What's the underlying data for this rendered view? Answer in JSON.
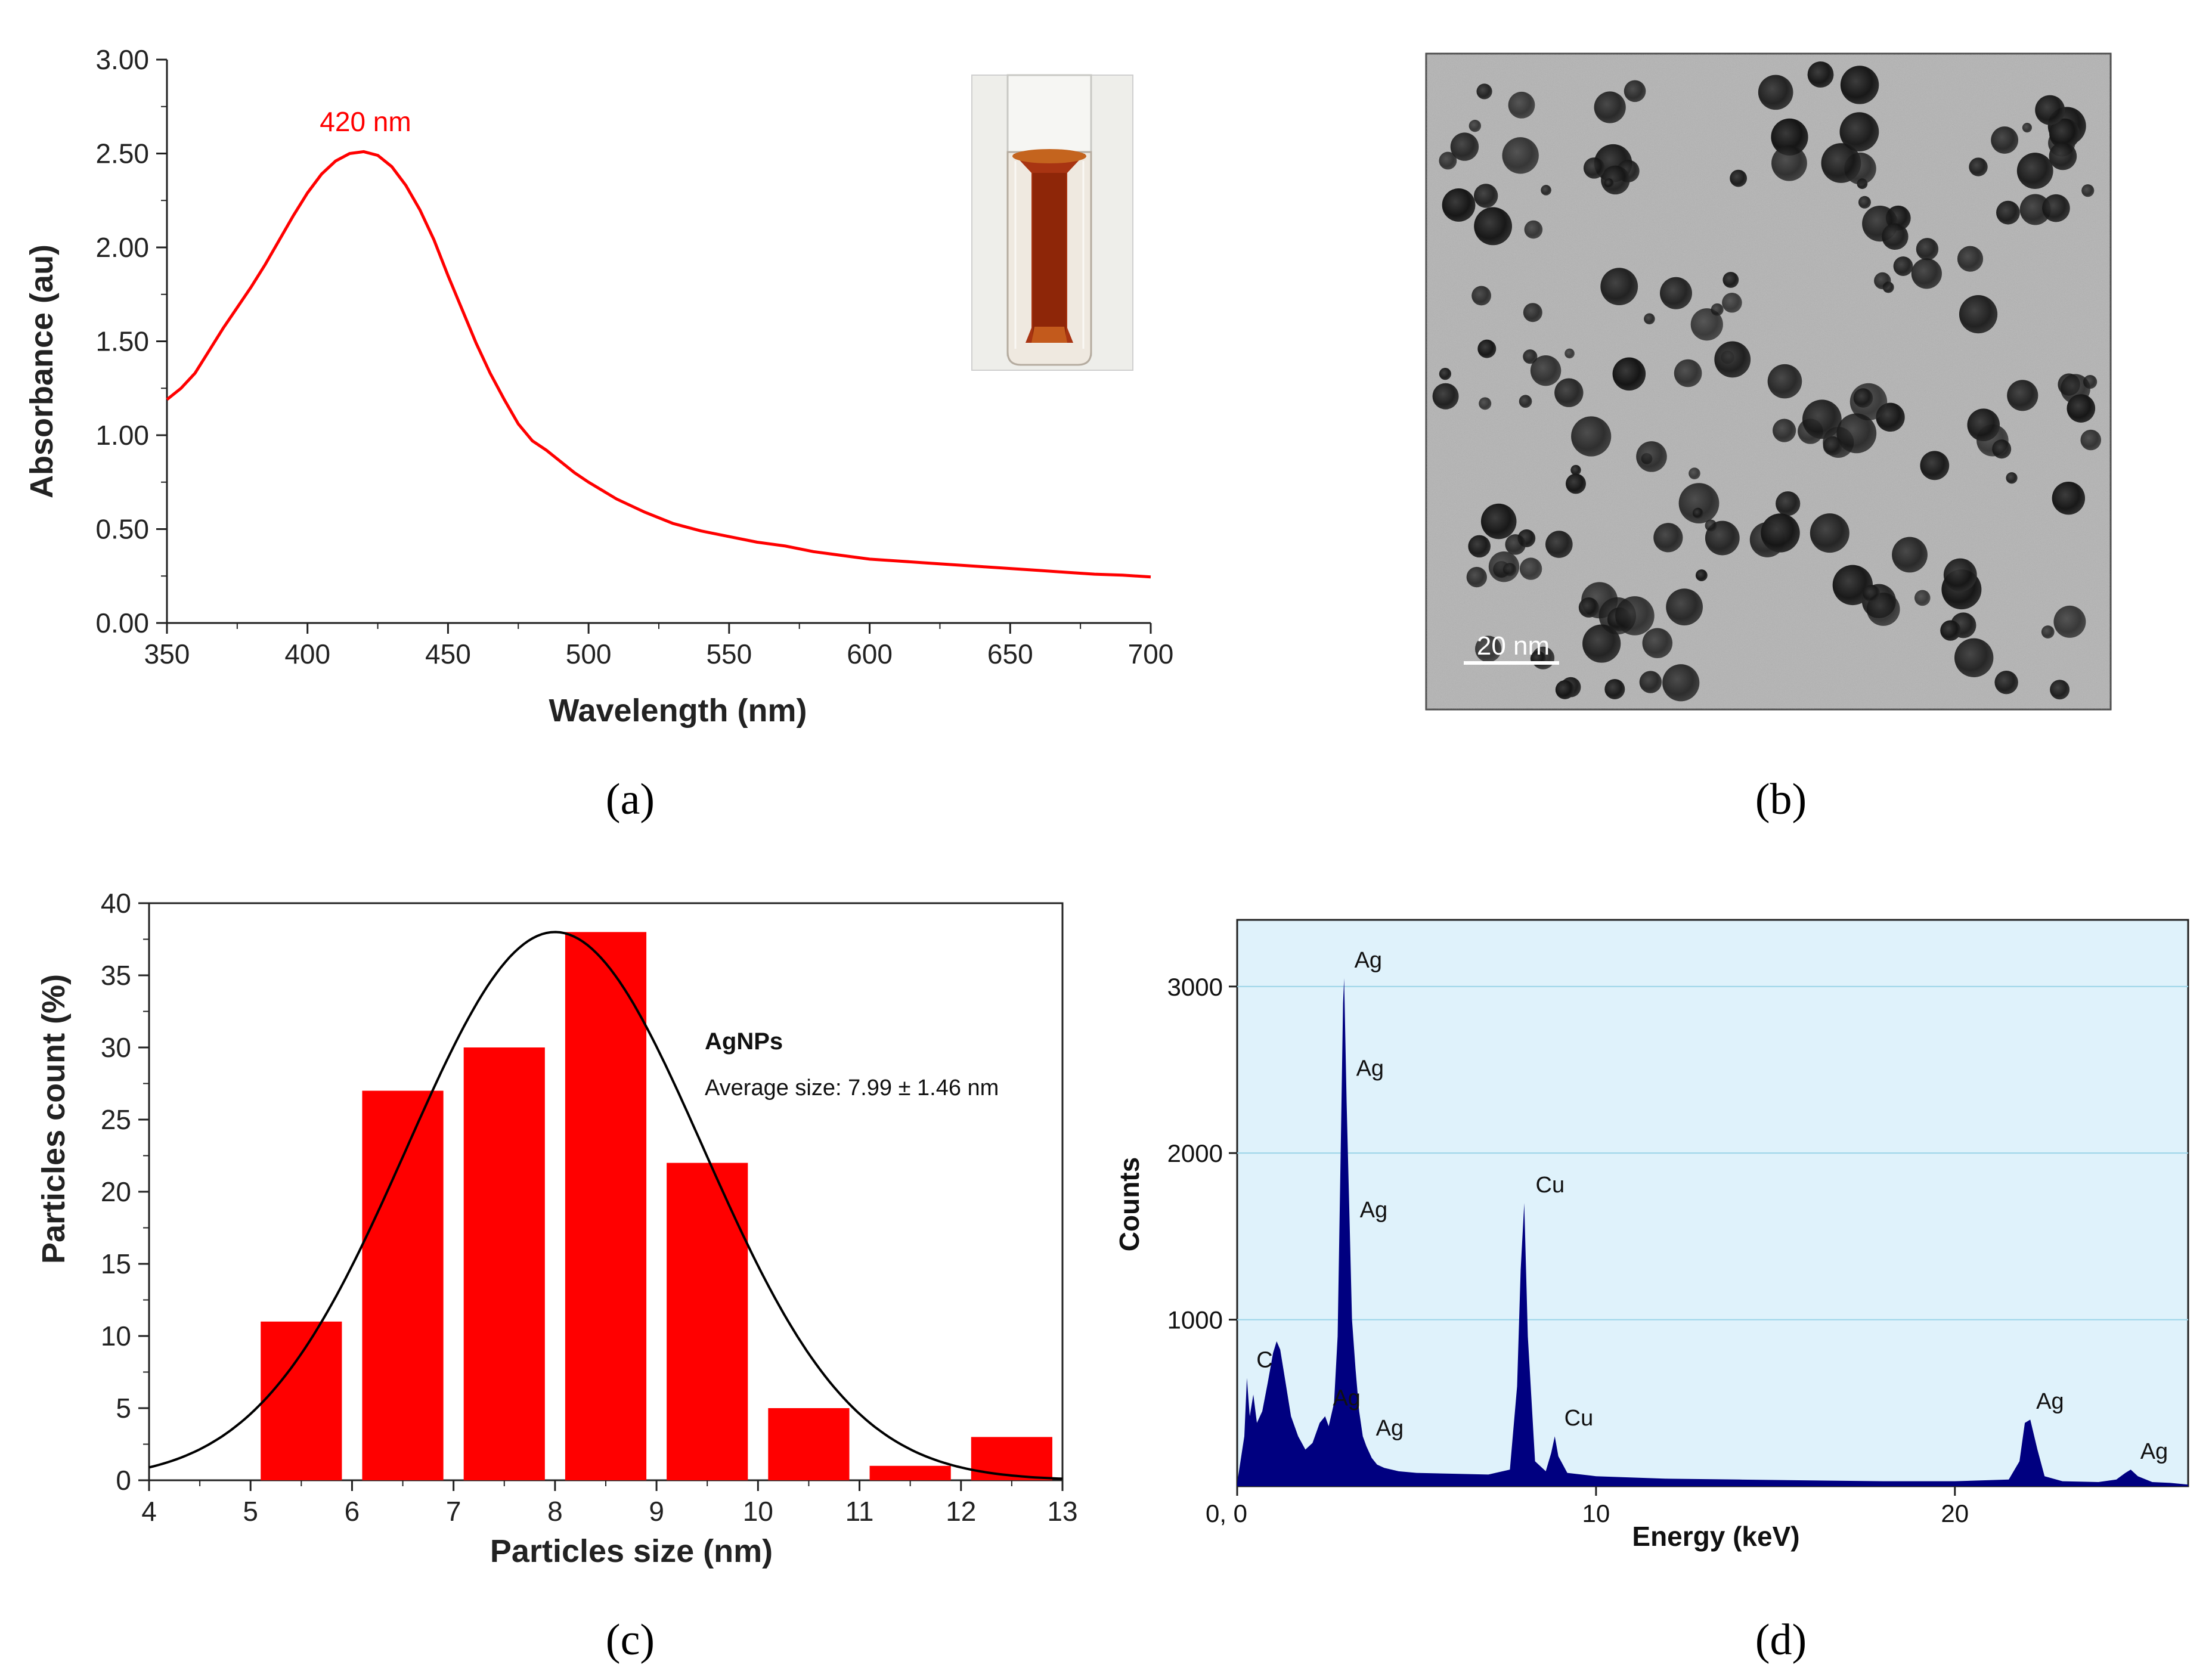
{
  "chart_data": [
    {
      "panel": "a",
      "type": "line",
      "caption": "(a)",
      "xlabel": "Wavelength (nm)",
      "ylabel": "Absorbance (au)",
      "xlim": [
        350,
        700
      ],
      "ylim": [
        0,
        3
      ],
      "xticks": [
        350,
        400,
        450,
        500,
        550,
        600,
        650,
        700
      ],
      "yticks": [
        "0.00",
        "0.50",
        "1.00",
        "1.50",
        "2.00",
        "2.50",
        "3.00"
      ],
      "annotation": "420 nm",
      "inset": "cuvette-photo",
      "series": [
        {
          "name": "absorbance",
          "color": "#ff0000",
          "x": [
            350,
            355,
            360,
            365,
            370,
            375,
            380,
            385,
            390,
            395,
            400,
            405,
            410,
            415,
            420,
            425,
            430,
            435,
            440,
            445,
            450,
            455,
            460,
            465,
            470,
            475,
            480,
            485,
            490,
            495,
            500,
            510,
            520,
            530,
            540,
            550,
            560,
            570,
            580,
            590,
            600,
            610,
            620,
            630,
            640,
            650,
            660,
            670,
            680,
            690,
            700
          ],
          "y": [
            1.19,
            1.25,
            1.33,
            1.45,
            1.57,
            1.68,
            1.79,
            1.91,
            2.04,
            2.17,
            2.29,
            2.39,
            2.46,
            2.5,
            2.51,
            2.49,
            2.43,
            2.33,
            2.2,
            2.04,
            1.85,
            1.67,
            1.49,
            1.33,
            1.19,
            1.06,
            0.97,
            0.92,
            0.86,
            0.8,
            0.75,
            0.66,
            0.59,
            0.53,
            0.49,
            0.46,
            0.43,
            0.41,
            0.38,
            0.36,
            0.34,
            0.33,
            0.32,
            0.31,
            0.3,
            0.29,
            0.28,
            0.27,
            0.26,
            0.255,
            0.245
          ]
        }
      ]
    },
    {
      "panel": "c",
      "type": "bar",
      "caption": "(c)",
      "xlabel": "Particles size (nm)",
      "ylabel": "Particles count (%)",
      "xlim": [
        4,
        13
      ],
      "ylim": [
        0,
        40
      ],
      "xticks": [
        4,
        5,
        6,
        7,
        8,
        9,
        10,
        11,
        12,
        13
      ],
      "yticks": [
        0,
        5,
        10,
        15,
        20,
        25,
        30,
        35,
        40
      ],
      "bar_color": "#ff0000",
      "bar_width": 0.8,
      "categories": [
        5.5,
        6.5,
        7.5,
        8.5,
        9.5,
        10.5,
        11.5,
        12.5
      ],
      "values": [
        11,
        27,
        30,
        38,
        22,
        5,
        1,
        3
      ],
      "fit": {
        "type": "gaussian",
        "mean": 8.0,
        "sd": 1.46,
        "peak": 38,
        "color": "#000000"
      },
      "legend_title": "AgNPs",
      "legend_text": "Average size: 7.99 ± 1.46 nm"
    },
    {
      "panel": "d",
      "type": "area",
      "caption": "(d)",
      "xlabel": "Energy (keV)",
      "ylabel": "Counts",
      "xlim": [
        0,
        26.5
      ],
      "ylim": [
        0,
        3400
      ],
      "xtick_labels": [
        "0, 0",
        "10",
        "20"
      ],
      "xtick_values": [
        0,
        10,
        20
      ],
      "yticks": [
        1000,
        2000,
        3000
      ],
      "fill_color": "#000080",
      "background_color": "#dff2fb",
      "grid_color": "#9bd4e8",
      "x": [
        0.0,
        0.2,
        0.27,
        0.35,
        0.45,
        0.55,
        0.7,
        0.85,
        1.0,
        1.1,
        1.2,
        1.35,
        1.5,
        1.7,
        1.9,
        2.1,
        2.3,
        2.45,
        2.55,
        2.7,
        2.8,
        2.9,
        2.95,
        2.98,
        3.05,
        3.12,
        3.2,
        3.3,
        3.4,
        3.5,
        3.6,
        3.75,
        3.9,
        4.1,
        4.5,
        5.0,
        6.0,
        7.0,
        7.6,
        7.8,
        7.9,
        8.0,
        8.1,
        8.3,
        8.6,
        8.75,
        8.85,
        8.95,
        9.2,
        10.0,
        12.0,
        14.0,
        16.0,
        18.0,
        20.0,
        21.5,
        21.8,
        21.95,
        22.1,
        22.3,
        22.5,
        23.0,
        24.0,
        24.5,
        24.75,
        24.9,
        25.1,
        25.5,
        26.0,
        26.5
      ],
      "y": [
        20,
        300,
        650,
        420,
        550,
        380,
        450,
        620,
        800,
        870,
        820,
        620,
        420,
        300,
        220,
        260,
        380,
        420,
        360,
        500,
        900,
        2200,
        2900,
        3050,
        2300,
        1700,
        1000,
        700,
        450,
        300,
        240,
        170,
        130,
        110,
        90,
        80,
        75,
        70,
        100,
        600,
        1300,
        1700,
        900,
        150,
        90,
        200,
        300,
        180,
        80,
        60,
        45,
        40,
        35,
        30,
        30,
        40,
        150,
        380,
        400,
        220,
        60,
        30,
        25,
        40,
        80,
        100,
        60,
        25,
        20,
        10
      ],
      "peak_labels": [
        {
          "label": "C",
          "x": 0.27,
          "y": 650
        },
        {
          "label": "Ag",
          "x": 2.4,
          "y": 420
        },
        {
          "label": "Ag",
          "x": 3.0,
          "y": 3050
        },
        {
          "label": "Ag",
          "x": 3.05,
          "y": 2400
        },
        {
          "label": "Ag",
          "x": 3.15,
          "y": 1550
        },
        {
          "label": "Ag",
          "x": 3.6,
          "y": 240
        },
        {
          "label": "Cu",
          "x": 8.05,
          "y": 1700
        },
        {
          "label": "Cu",
          "x": 8.85,
          "y": 300
        },
        {
          "label": "Ag",
          "x": 22.0,
          "y": 400
        },
        {
          "label": "Ag",
          "x": 24.9,
          "y": 100
        }
      ]
    }
  ],
  "tem_image": {
    "caption": "(b)",
    "scale_bar_label": "20 nm"
  }
}
